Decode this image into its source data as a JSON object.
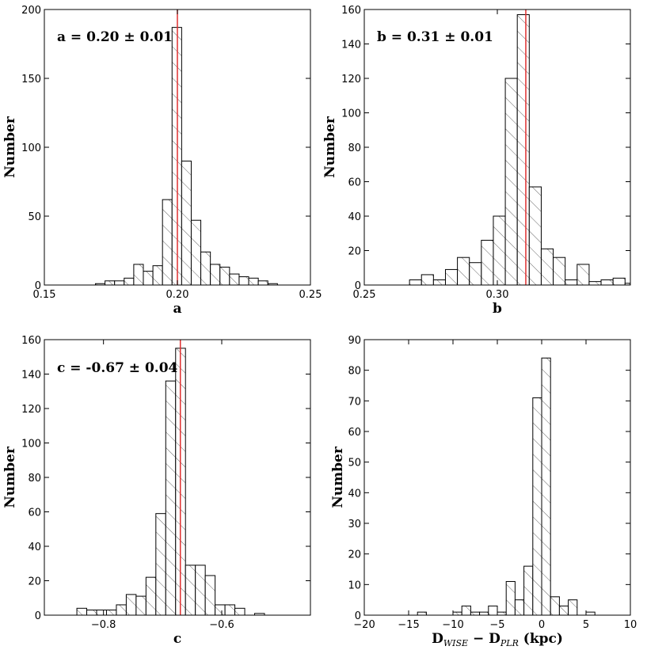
{
  "chart_data": [
    {
      "type": "bar",
      "subtype": "histogram",
      "xlabel": "a",
      "ylabel": "Number",
      "xlim": [
        0.15,
        0.25
      ],
      "ylim": [
        0,
        200
      ],
      "xticks": [
        0.15,
        0.2,
        0.25
      ],
      "xtick_labels": [
        "0.15",
        "0.20",
        "0.25"
      ],
      "yticks": [
        0,
        50,
        100,
        150,
        200
      ],
      "ytick_labels": [
        "0",
        "50",
        "100",
        "150",
        "200"
      ],
      "bin_width": 0.0036,
      "bins_start": [
        0.1692,
        0.1728,
        0.1764,
        0.18,
        0.1836,
        0.1872,
        0.1908,
        0.1944,
        0.198,
        0.2016,
        0.2052,
        0.2088,
        0.2124,
        0.216,
        0.2196,
        0.2232,
        0.2268,
        0.2304,
        0.234
      ],
      "values": [
        1,
        3,
        3,
        5,
        15,
        10,
        14,
        62,
        187,
        90,
        47,
        24,
        15,
        13,
        8,
        6,
        5,
        3,
        1
      ],
      "vline": 0.2,
      "annotation": "a = 0.20 ± 0.01"
    },
    {
      "type": "bar",
      "subtype": "histogram",
      "xlabel": "b",
      "ylabel": "Number",
      "xlim": [
        0.25,
        0.35
      ],
      "ylim": [
        0,
        160
      ],
      "xticks": [
        0.25,
        0.3
      ],
      "xtick_labels": [
        "0.25",
        "0.30"
      ],
      "yticks": [
        0,
        20,
        40,
        60,
        80,
        100,
        120,
        140,
        160
      ],
      "ytick_labels": [
        "0",
        "20",
        "40",
        "60",
        "80",
        "100",
        "120",
        "140",
        "160"
      ],
      "bin_width": 0.0045,
      "bins_start": [
        0.267,
        0.2715,
        0.276,
        0.2805,
        0.285,
        0.2895,
        0.294,
        0.2985,
        0.303,
        0.3075,
        0.312,
        0.3165,
        0.321,
        0.3255,
        0.33,
        0.3345,
        0.339,
        0.3435,
        0.348
      ],
      "values": [
        3,
        6,
        3,
        9,
        16,
        13,
        26,
        40,
        120,
        157,
        57,
        21,
        16,
        3,
        12,
        2,
        3,
        4,
        1
      ],
      "vline": 0.3107,
      "annotation": "b = 0.31 ± 0.01"
    },
    {
      "type": "bar",
      "subtype": "histogram",
      "xlabel": "c",
      "ylabel": "Number",
      "xlim": [
        -0.9,
        -0.45
      ],
      "ylim": [
        0,
        160
      ],
      "xticks": [
        -0.8,
        -0.6
      ],
      "xtick_labels": [
        "−0.8",
        "−0.6"
      ],
      "yticks": [
        0,
        20,
        40,
        60,
        80,
        100,
        120,
        140,
        160
      ],
      "ytick_labels": [
        "0",
        "20",
        "40",
        "60",
        "80",
        "100",
        "120",
        "140",
        "160"
      ],
      "bin_width": 0.0167,
      "bins_start": [
        -0.845,
        -0.8283,
        -0.8116,
        -0.7949,
        -0.7782,
        -0.7615,
        -0.7448,
        -0.7281,
        -0.7114,
        -0.6947,
        -0.678,
        -0.6613,
        -0.6446,
        -0.6279,
        -0.6112,
        -0.5945,
        -0.5778,
        -0.5611,
        -0.5444,
        -0.5277
      ],
      "values": [
        4,
        3,
        3,
        3,
        6,
        12,
        11,
        22,
        59,
        136,
        155,
        29,
        29,
        23,
        6,
        6,
        4,
        0,
        1,
        0
      ],
      "vline": -0.67,
      "annotation": "c = -0.67 ± 0.04"
    },
    {
      "type": "bar",
      "subtype": "histogram",
      "xlabel_main": "D",
      "xlabel_sub1": "WISE",
      "xlabel_mid": " − D",
      "xlabel_sub2": "PLR",
      "xlabel_tail": " (kpc)",
      "ylabel": "Number",
      "xlim": [
        -20,
        10
      ],
      "ylim": [
        0,
        90
      ],
      "xticks": [
        -20,
        -15,
        -10,
        -5,
        0,
        5,
        10
      ],
      "xtick_labels": [
        "−20",
        "−15",
        "−10",
        "−5",
        "0",
        "5",
        "10"
      ],
      "yticks": [
        0,
        10,
        20,
        30,
        40,
        50,
        60,
        70,
        80,
        90
      ],
      "ytick_labels": [
        "0",
        "10",
        "20",
        "30",
        "40",
        "50",
        "60",
        "70",
        "80",
        "90"
      ],
      "bin_width": 1.0,
      "bins_start": [
        -14,
        -13,
        -12,
        -11,
        -10,
        -9,
        -8,
        -7,
        -6,
        -5,
        -4,
        -3,
        -2,
        -1,
        0,
        1,
        2,
        3,
        4,
        5
      ],
      "values": [
        1,
        0,
        0,
        0,
        1,
        3,
        1,
        1,
        3,
        1,
        11,
        5,
        16,
        71,
        84,
        6,
        3,
        5,
        0,
        1
      ]
    }
  ]
}
